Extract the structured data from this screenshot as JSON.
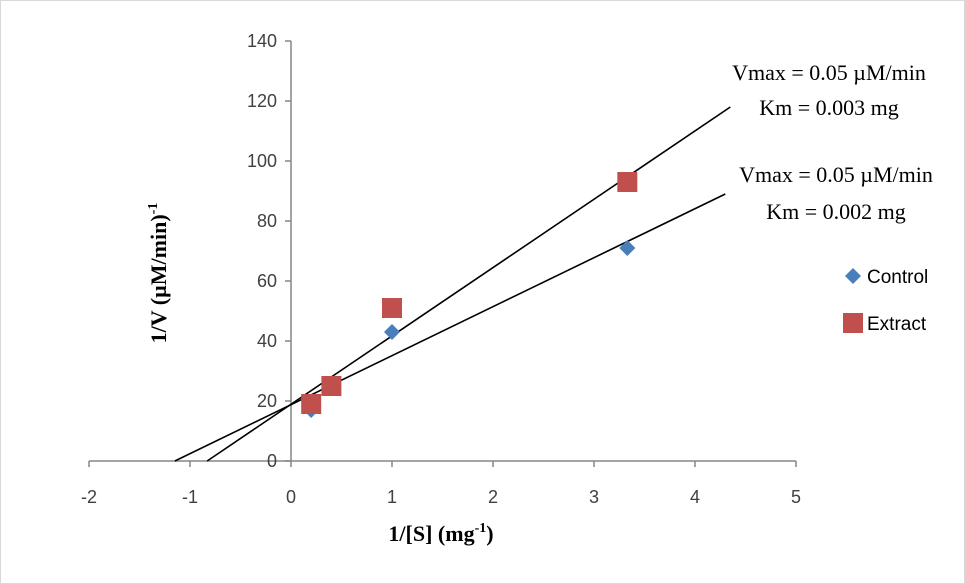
{
  "chart_data": {
    "type": "scatter",
    "xlabel": "1/[S] (mg",
    "xlabel_sup": "-1",
    "xlabel_end": ")",
    "ylabel": "1/V (µM/min)",
    "ylabel_sup": "-1",
    "xlim": [
      -2,
      5
    ],
    "ylim": [
      0,
      140
    ],
    "x_ticks": [
      "-2",
      "-1",
      "0",
      "1",
      "2",
      "3",
      "4",
      "5"
    ],
    "y_ticks": [
      "0",
      "20",
      "40",
      "60",
      "80",
      "100",
      "120",
      "140"
    ],
    "grid": false,
    "legend_position": "right",
    "series": [
      {
        "name": "Control",
        "marker": "diamond",
        "color": "#4a7ebb",
        "points": [
          [
            0.2,
            17
          ],
          [
            1,
            43
          ],
          [
            3.33,
            71
          ]
        ],
        "trendline": {
          "x": [
            -1.15,
            4.3
          ],
          "y": [
            0,
            89
          ]
        },
        "annotation": [
          "Vmax = 0.05 µM/min",
          "Km = 0.002 mg"
        ]
      },
      {
        "name": "Extract",
        "marker": "square",
        "color": "#c0504d",
        "points": [
          [
            0.2,
            19
          ],
          [
            0.4,
            25
          ],
          [
            1,
            51
          ],
          [
            3.33,
            93
          ]
        ],
        "trendline": {
          "x": [
            -0.83,
            4.35
          ],
          "y": [
            0,
            118
          ]
        },
        "annotation": [
          "Vmax = 0.05 µM/min",
          "Km = 0.003 mg"
        ]
      }
    ]
  }
}
